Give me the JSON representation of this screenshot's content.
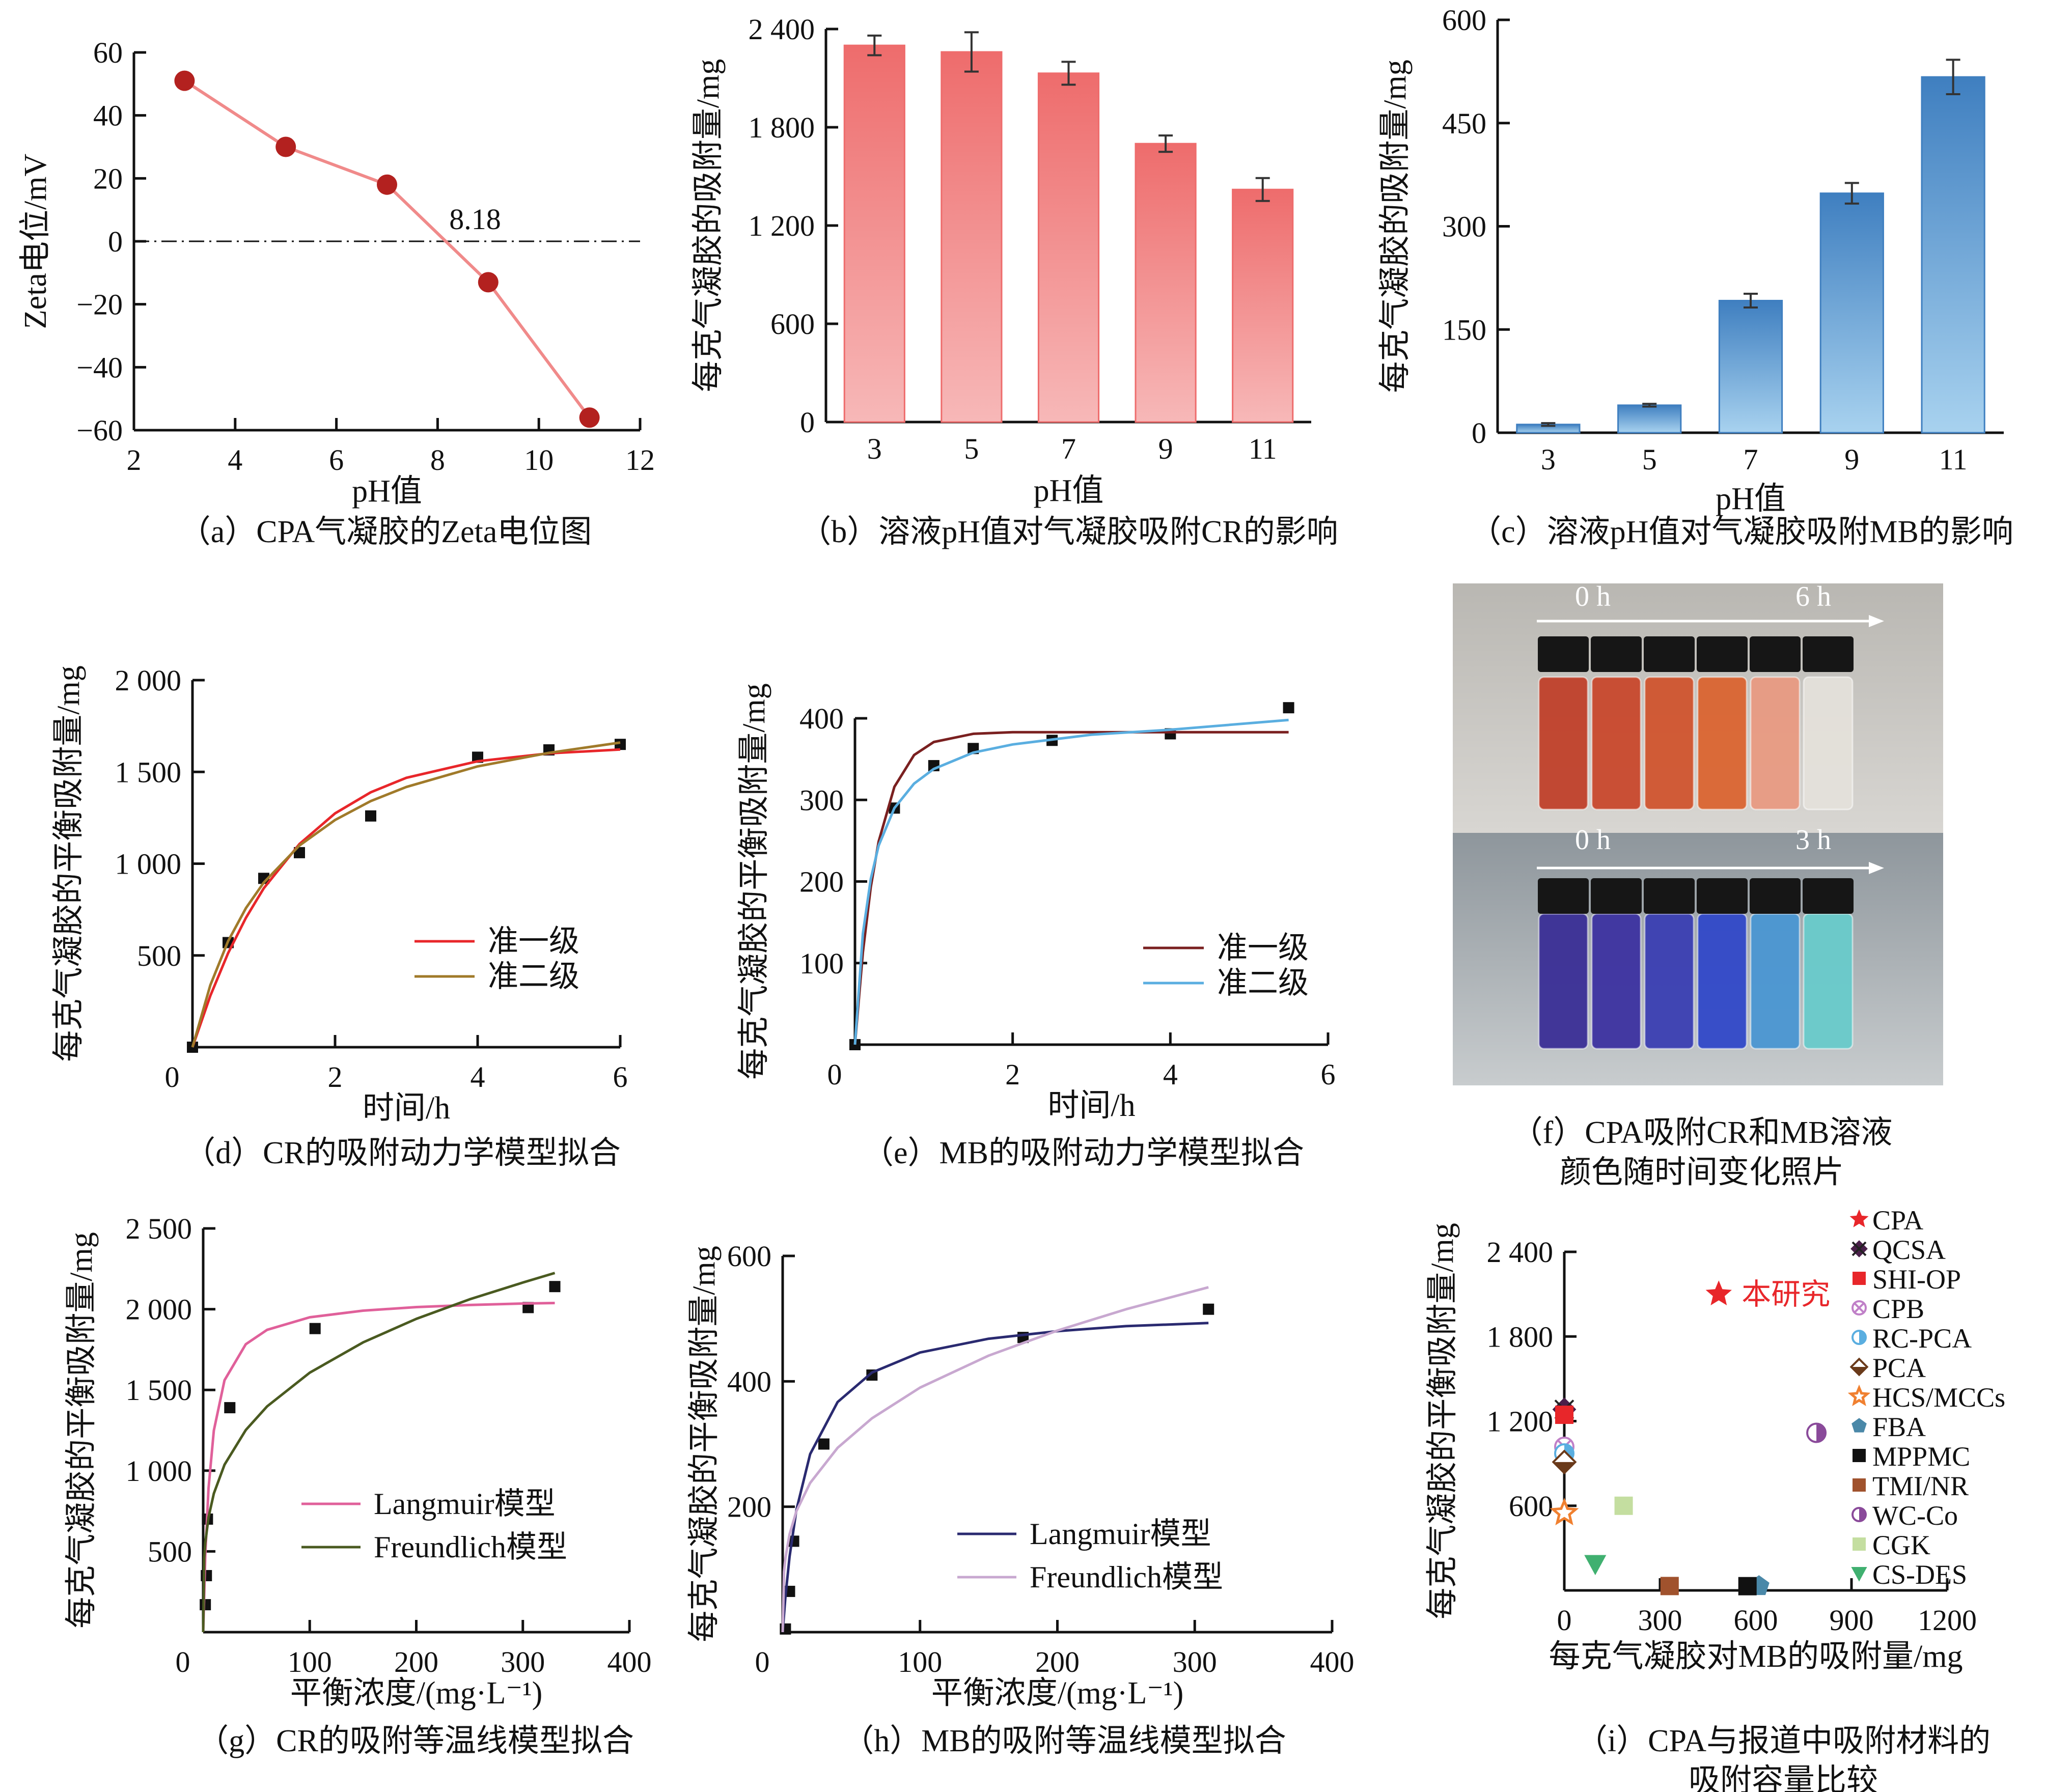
{
  "chart_data": [
    {
      "id": "a",
      "type": "line",
      "caption": [
        "（a）CPA气凝胶的Zeta电位图"
      ],
      "xlabel": "pH值",
      "ylabel": "Zeta电位/mV",
      "xlim": [
        2,
        12
      ],
      "ylim": [
        -60,
        60
      ],
      "xticks": [
        2,
        4,
        6,
        8,
        10,
        12
      ],
      "xtick_labels": [
        "2",
        "4",
        "6",
        "8",
        "10",
        "12"
      ],
      "yticks": [
        -60,
        -40,
        -20,
        0,
        20,
        40,
        60
      ],
      "ytick_labels": [
        "−60",
        "−40",
        "−20",
        "0",
        "20",
        "40",
        "60"
      ],
      "zero_line": true,
      "annotation": {
        "text": "8.18",
        "x": 8.18,
        "y": 0
      },
      "series": [
        {
          "style": "line+markers",
          "marker": "circle",
          "x": [
            3,
            5,
            7,
            9,
            11
          ],
          "y": [
            51,
            30,
            18,
            -13,
            -56
          ],
          "color": "#f08a8a",
          "marker_color": "#b3211f"
        }
      ]
    },
    {
      "id": "b",
      "type": "bar",
      "caption": [
        "（b）溶液pH值对气凝胶吸附CR的影响"
      ],
      "xlabel": "pH值",
      "ylabel": "每克气凝胶的吸附量/mg",
      "categories": [
        "3",
        "5",
        "7",
        "9",
        "11"
      ],
      "values": [
        2300,
        2260,
        2130,
        1700,
        1420
      ],
      "errors": [
        60,
        120,
        70,
        50,
        70
      ],
      "ylim": [
        0,
        2400
      ],
      "yticks": [
        0,
        600,
        1200,
        1800,
        2400
      ],
      "ytick_labels": [
        "0",
        "600",
        "1 200",
        "1 800",
        "2 400"
      ],
      "colors": [
        "#ee6c6c",
        "#f7b8b8"
      ]
    },
    {
      "id": "c",
      "type": "bar",
      "caption": [
        "（c）溶液pH值对气凝胶吸附MB的影响"
      ],
      "xlabel": "pH值",
      "ylabel": "每克气凝胶的吸附量/mg",
      "categories": [
        "3",
        "5",
        "7",
        "9",
        "11"
      ],
      "values": [
        12,
        40,
        192,
        348,
        517
      ],
      "errors": [
        2,
        2,
        10,
        15,
        25
      ],
      "ylim": [
        0,
        600
      ],
      "yticks": [
        0,
        150,
        300,
        450,
        600
      ],
      "ytick_labels": [
        "0",
        "150",
        "300",
        "450",
        "600"
      ],
      "colors": [
        "#3f7fc0",
        "#a8d2ef"
      ]
    },
    {
      "id": "d",
      "type": "scatter",
      "caption": [
        "（d）CR的吸附动力学模型拟合"
      ],
      "xlabel": "时间/h",
      "ylabel": "每克气凝胶的平衡吸附量/mg",
      "xlim": [
        0,
        6
      ],
      "ylim": [
        0,
        2000
      ],
      "xticks": [
        0,
        2,
        4,
        6
      ],
      "xtick_labels": [
        "0",
        "2",
        "4",
        "6"
      ],
      "yticks": [
        500,
        1000,
        1500,
        2000
      ],
      "ytick_labels": [
        "500",
        "1 000",
        "1 500",
        "2 000"
      ],
      "series": [
        {
          "style": "markers",
          "marker": "square",
          "color": "#111111",
          "x": [
            0,
            0.5,
            1,
            1.5,
            2.5,
            4,
            5,
            6
          ],
          "y": [
            0,
            570,
            920,
            1060,
            1260,
            1580,
            1620,
            1650
          ]
        },
        {
          "style": "line",
          "name": "准一级",
          "color": "#e8262a",
          "x": [
            0,
            0.25,
            0.5,
            0.75,
            1,
            1.5,
            2,
            2.5,
            3,
            4,
            5,
            6
          ],
          "y": [
            0,
            280,
            513,
            705,
            866,
            1107,
            1274,
            1389,
            1468,
            1558,
            1601,
            1622
          ]
        },
        {
          "style": "line",
          "name": "准二级",
          "color": "#a07a2a",
          "x": [
            0,
            0.25,
            0.5,
            0.75,
            1,
            1.5,
            2,
            2.5,
            3,
            4,
            5,
            6
          ],
          "y": [
            0,
            338,
            578,
            758,
            897,
            1099,
            1238,
            1341,
            1418,
            1530,
            1604,
            1660
          ]
        }
      ]
    },
    {
      "id": "e",
      "type": "scatter",
      "caption": [
        "（e）MB的吸附动力学模型拟合"
      ],
      "xlabel": "时间/h",
      "ylabel": "每克气凝胶的平衡吸附量/mg",
      "xlim": [
        0,
        6
      ],
      "ylim": [
        0,
        400
      ],
      "xticks": [
        0,
        2,
        4,
        6
      ],
      "xtick_labels": [
        "0",
        "2",
        "4",
        "6"
      ],
      "yticks": [
        100,
        200,
        300,
        400
      ],
      "ytick_labels": [
        "100",
        "200",
        "300",
        "400"
      ],
      "series": [
        {
          "style": "markers",
          "marker": "square",
          "color": "#111111",
          "x": [
            0,
            0.5,
            1,
            1.5,
            2.5,
            4,
            5.5
          ],
          "y": [
            0,
            290,
            342,
            363,
            373,
            381,
            413
          ]
        },
        {
          "style": "line",
          "name": "准一级",
          "color": "#7a2020",
          "x": [
            0,
            0.1,
            0.2,
            0.3,
            0.5,
            0.75,
            1,
            1.5,
            2,
            3,
            4,
            5.5
          ],
          "y": [
            0,
            113,
            193,
            249,
            316,
            355,
            371,
            381,
            383,
            383,
            383,
            383
          ]
        },
        {
          "style": "line",
          "name": "准二级",
          "color": "#5aaee0",
          "x": [
            0,
            0.1,
            0.2,
            0.3,
            0.5,
            0.75,
            1,
            1.5,
            2,
            3,
            4,
            5.5
          ],
          "y": [
            0,
            136,
            203,
            244,
            290,
            320,
            338,
            358,
            368,
            380,
            386,
            398
          ]
        }
      ]
    },
    {
      "id": "g",
      "type": "scatter",
      "caption": [
        "（g）CR的吸附等温线模型拟合"
      ],
      "xlabel": "平衡浓度/(mg·L⁻¹)",
      "ylabel": "每克气凝胶的平衡吸附量/mg",
      "xlim": [
        0,
        400
      ],
      "ylim": [
        0,
        2500
      ],
      "xticks": [
        0,
        100,
        200,
        300,
        400
      ],
      "xtick_labels": [
        "0",
        "100",
        "200",
        "300",
        "400"
      ],
      "yticks": [
        500,
        1000,
        1500,
        2000,
        2500
      ],
      "ytick_labels": [
        "500",
        "1 000",
        "1 500",
        "2 000",
        "2 500"
      ],
      "series": [
        {
          "style": "markers",
          "marker": "square",
          "color": "#111111",
          "x": [
            2,
            3,
            4,
            25,
            105,
            305,
            330
          ],
          "y": [
            170,
            350,
            700,
            1390,
            1880,
            2010,
            2140
          ]
        },
        {
          "style": "line",
          "name": "Langmuir模型",
          "color": "#e0609a",
          "x": [
            0,
            2,
            5,
            10,
            20,
            40,
            60,
            100,
            150,
            200,
            250,
            300,
            330
          ],
          "y": [
            0,
            480,
            891,
            1248,
            1560,
            1783,
            1872,
            1950,
            1991,
            2013,
            2026,
            2035,
            2038
          ]
        },
        {
          "style": "line",
          "name": "Freundlich模型",
          "color": "#4a5a20",
          "x": [
            0,
            1,
            2,
            5,
            10,
            20,
            40,
            60,
            100,
            150,
            200,
            250,
            300,
            330
          ],
          "y": [
            0,
            459,
            554,
            711,
            858,
            1037,
            1252,
            1398,
            1607,
            1794,
            1940,
            2061,
            2165,
            2224
          ]
        }
      ]
    },
    {
      "id": "h",
      "type": "scatter",
      "caption": [
        "（h）MB的吸附等温线模型拟合"
      ],
      "xlabel": "平衡浓度/(mg·L⁻¹)",
      "ylabel": "每克气凝胶的平衡吸附量/mg",
      "xlim": [
        0,
        400
      ],
      "ylim": [
        0,
        600
      ],
      "xticks": [
        0,
        100,
        200,
        300,
        400
      ],
      "xtick_labels": [
        "0",
        "100",
        "200",
        "300",
        "400"
      ],
      "yticks": [
        200,
        400,
        600
      ],
      "ytick_labels": [
        "200",
        "400",
        "600"
      ],
      "series": [
        {
          "style": "markers",
          "marker": "square",
          "color": "#111111",
          "x": [
            2,
            5,
            8,
            30,
            65,
            175,
            310
          ],
          "y": [
            5,
            65,
            145,
            300,
            410,
            470,
            515
          ]
        },
        {
          "style": "line",
          "name": "Langmuir模型",
          "color": "#2a2a70",
          "x": [
            0,
            2,
            5,
            10,
            20,
            40,
            65,
            100,
            150,
            200,
            250,
            310
          ],
          "y": [
            0,
            56,
            120,
            195,
            284,
            367,
            414,
            446,
            468,
            480,
            488,
            493
          ]
        },
        {
          "style": "line",
          "name": "Freundlich模型",
          "color": "#c8a8d0",
          "x": [
            0,
            1,
            2,
            5,
            10,
            20,
            40,
            65,
            100,
            150,
            200,
            250,
            310
          ],
          "y": [
            0,
            96,
            118,
            156,
            193,
            238,
            294,
            341,
            390,
            441,
            481,
            515,
            550
          ]
        }
      ]
    },
    {
      "id": "i",
      "type": "scatter",
      "caption": [
        "（i）CPA与报道中吸附材料的",
        "吸附容量比较"
      ],
      "xlabel": "每克气凝胶对MB的吸附量/mg",
      "ylabel": "每克气凝胶的平衡吸附量/mg",
      "xlim": [
        0,
        1200
      ],
      "ylim": [
        0,
        2400
      ],
      "xticks": [
        0,
        300,
        600,
        900,
        1200
      ],
      "xtick_labels": [
        "0",
        "300",
        "600",
        "900",
        "1200"
      ],
      "yticks": [
        600,
        1200,
        1800,
        2400
      ],
      "ytick_labels": [
        "600",
        "1 200",
        "1 800",
        "2 400"
      ],
      "annotation": {
        "text": "本研究",
        "color": "#e8262a"
      },
      "series": [
        {
          "style": "markers",
          "name": "CPA",
          "marker": "star",
          "color": "#e8262a",
          "x": [
            484
          ],
          "y": [
            2100
          ]
        },
        {
          "style": "markers",
          "name": "QCSA",
          "marker": "xdiamond",
          "color": "#4a1f4a",
          "x": [
            0
          ],
          "y": [
            1283
          ]
        },
        {
          "style": "markers",
          "name": "SHI-OP",
          "marker": "square",
          "color": "#e8262a",
          "x": [
            0
          ],
          "y": [
            1245
          ]
        },
        {
          "style": "markers",
          "name": "CPB",
          "marker": "xcircle",
          "color": "#c080c8",
          "x": [
            0
          ],
          "y": [
            1018
          ]
        },
        {
          "style": "markers",
          "name": "RC-PCA",
          "marker": "halfcircle",
          "color": "#5aaee0",
          "x": [
            0
          ],
          "y": [
            971
          ]
        },
        {
          "style": "markers",
          "name": "PCA",
          "marker": "halfdiamond",
          "color": "#6a3a1a",
          "x": [
            0
          ],
          "y": [
            910
          ]
        },
        {
          "style": "markers",
          "name": "HCS/MCCs",
          "marker": "openstar",
          "color": "#f08030",
          "x": [
            0
          ],
          "y": [
            549
          ]
        },
        {
          "style": "markers",
          "name": "FBA",
          "marker": "pentagon",
          "color": "#4a88a8",
          "x": [
            610
          ],
          "y": [
            30
          ]
        },
        {
          "style": "markers",
          "name": "MPPMC",
          "marker": "square",
          "color": "#111111",
          "x": [
            574
          ],
          "y": [
            30
          ]
        },
        {
          "style": "markers",
          "name": "TMI/NR",
          "marker": "square",
          "color": "#a0522d",
          "x": [
            330
          ],
          "y": [
            31
          ]
        },
        {
          "style": "markers",
          "name": "WC-Co",
          "marker": "halfcircle",
          "color": "#8a4a9a",
          "x": [
            790
          ],
          "y": [
            1117
          ]
        },
        {
          "style": "markers",
          "name": "CGK",
          "marker": "square",
          "color": "#c4dea0",
          "x": [
            186
          ],
          "y": [
            600
          ]
        },
        {
          "style": "markers",
          "name": "CS-DES",
          "marker": "tridown",
          "color": "#40b070",
          "x": [
            97
          ],
          "y": [
            186
          ]
        }
      ]
    }
  ],
  "photo": {
    "caption": [
      "（f）CPA吸附CR和MB溶液",
      "颜色随时间变化照片"
    ],
    "top": {
      "start_label": "0 h",
      "end_label": "6 h",
      "colors": [
        "#c0402a",
        "#c8482c",
        "#d0542e",
        "#da6430",
        "#e89a82",
        "#e4e0da"
      ]
    },
    "bottom": {
      "start_label": "0 h",
      "end_label": "3 h",
      "colors": [
        "#3a2e96",
        "#3c32a0",
        "#3a3eb2",
        "#3048c8",
        "#4a96d2",
        "#68caca"
      ]
    }
  }
}
